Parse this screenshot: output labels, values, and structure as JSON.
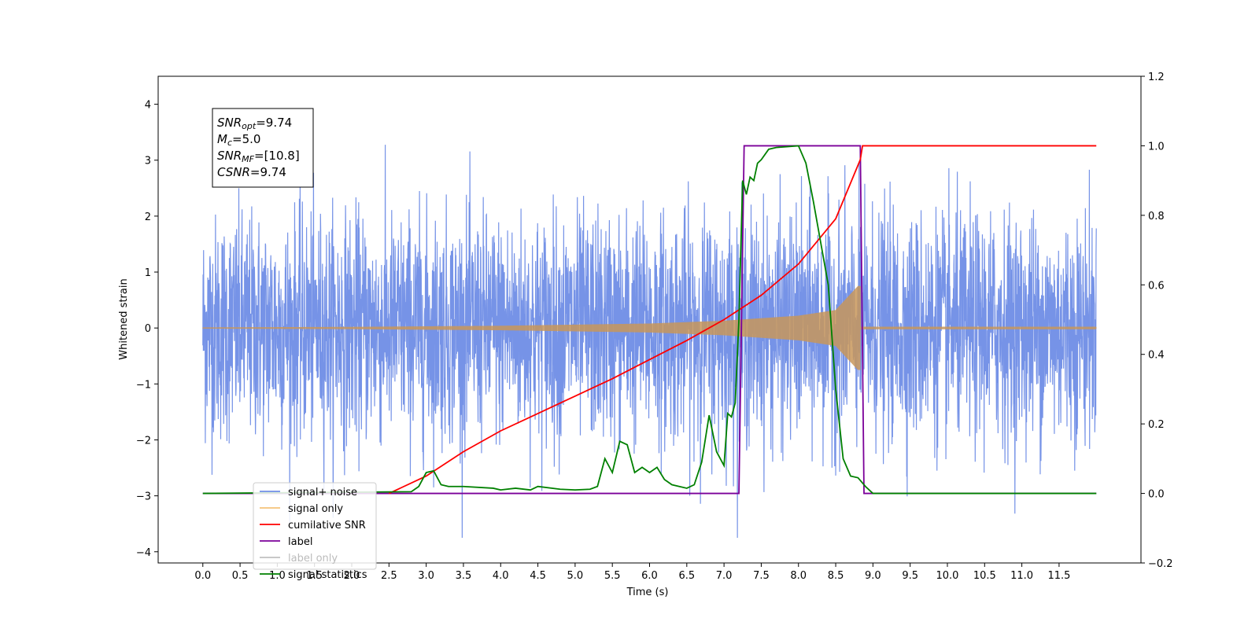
{
  "chart_data": {
    "type": "line",
    "title": "",
    "xlabel": "Time (s)",
    "ylabel": "Whitened strain",
    "y2label": "",
    "xlim": [
      -0.6,
      12.6
    ],
    "ylim": [
      -4.2,
      4.5
    ],
    "y2lim": [
      -0.2,
      1.2
    ],
    "x_ticks": [
      "0.0",
      "0.5",
      "1.0",
      "1.5",
      "2.0",
      "2.5",
      "3.0",
      "3.5",
      "4.0",
      "4.5",
      "5.0",
      "5.5",
      "6.0",
      "6.5",
      "7.0",
      "7.5",
      "8.0",
      "8.5",
      "9.0",
      "9.5",
      "10.0",
      "10.5",
      "11.0",
      "11.5"
    ],
    "y_ticks": [
      "4",
      "3",
      "2",
      "1",
      "0",
      "−1",
      "−2",
      "−3",
      "−4"
    ],
    "y2_ticks": [
      "1.2",
      "1.0",
      "0.8",
      "0.6",
      "0.4",
      "0.2",
      "0.0",
      "−0.2"
    ],
    "grid": false,
    "legend_position": "lower-left",
    "annotation": {
      "lines": [
        {
          "main": "SNR",
          "sub": "opt",
          "rest": "=9.74"
        },
        {
          "main": "M",
          "sub": "c",
          "rest": "=5.0"
        },
        {
          "main": "SNR",
          "sub": "MF",
          "rest": "=[10.8]"
        },
        {
          "main": "CSNR",
          "sub": "",
          "rest": "=9.74"
        }
      ]
    },
    "series": [
      {
        "name": "signal+ noise",
        "axis": "left",
        "color": "#6f8de6",
        "t_range": [
          0,
          12
        ],
        "noise_sigma": 1.0,
        "peak_range": [
          -3.75,
          4.1
        ]
      },
      {
        "name": "signal only",
        "axis": "left",
        "color": "#f5b041",
        "chirp_start": 0,
        "chirp_end": 8.83,
        "amplitude_envelope": [
          [
            0,
            0.01
          ],
          [
            2,
            0.02
          ],
          [
            4,
            0.04
          ],
          [
            6,
            0.08
          ],
          [
            7,
            0.13
          ],
          [
            8,
            0.22
          ],
          [
            8.5,
            0.32
          ],
          [
            8.8,
            0.75
          ]
        ]
      },
      {
        "name": "cumilative SNR",
        "axis": "right",
        "color": "#ff0000",
        "x": [
          2.5,
          3.0,
          3.5,
          4.0,
          4.5,
          5.0,
          5.5,
          6.0,
          6.5,
          7.0,
          7.5,
          8.0,
          8.5,
          8.83,
          8.86,
          12.0
        ],
        "y": [
          0.0,
          0.05,
          0.12,
          0.18,
          0.23,
          0.28,
          0.33,
          0.385,
          0.44,
          0.5,
          0.57,
          0.66,
          0.79,
          0.96,
          1.0,
          1.0
        ]
      },
      {
        "name": "label",
        "axis": "right",
        "color": "#7b0099",
        "x": [
          0,
          7.2,
          7.27,
          8.83,
          8.88,
          12.0
        ],
        "y": [
          0,
          0,
          1,
          1,
          0,
          0
        ]
      },
      {
        "name": "label only",
        "axis": "right",
        "color": "#b0b0b0",
        "x": [],
        "y": []
      },
      {
        "name": "signal statistics",
        "axis": "right",
        "color": "#008000",
        "x": [
          0,
          2.8,
          2.9,
          3.0,
          3.1,
          3.2,
          3.3,
          3.5,
          3.9,
          4.0,
          4.2,
          4.4,
          4.5,
          4.8,
          5.0,
          5.2,
          5.3,
          5.4,
          5.5,
          5.6,
          5.7,
          5.8,
          5.9,
          6.0,
          6.1,
          6.2,
          6.3,
          6.4,
          6.5,
          6.6,
          6.7,
          6.8,
          6.9,
          7.0,
          7.05,
          7.1,
          7.15,
          7.2,
          7.25,
          7.3,
          7.35,
          7.4,
          7.45,
          7.5,
          7.6,
          7.7,
          8.0,
          8.1,
          8.2,
          8.3,
          8.4,
          8.5,
          8.6,
          8.7,
          8.8,
          8.9,
          9.0,
          12.0
        ],
        "y": [
          0,
          0.005,
          0.02,
          0.06,
          0.065,
          0.025,
          0.02,
          0.02,
          0.015,
          0.01,
          0.015,
          0.01,
          0.02,
          0.012,
          0.01,
          0.012,
          0.02,
          0.1,
          0.06,
          0.15,
          0.14,
          0.06,
          0.075,
          0.06,
          0.075,
          0.04,
          0.025,
          0.02,
          0.015,
          0.025,
          0.09,
          0.225,
          0.12,
          0.08,
          0.23,
          0.22,
          0.26,
          0.5,
          0.9,
          0.86,
          0.91,
          0.9,
          0.95,
          0.96,
          0.99,
          0.995,
          1.0,
          0.95,
          0.84,
          0.72,
          0.6,
          0.3,
          0.1,
          0.05,
          0.045,
          0.02,
          0.0,
          0.0
        ]
      }
    ]
  }
}
